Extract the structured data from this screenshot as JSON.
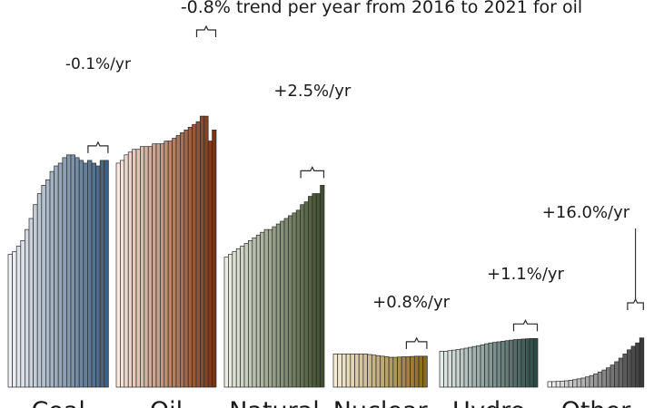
{
  "chart_data": {
    "type": "bar",
    "title": "",
    "xlabel": "",
    "ylabel": "",
    "grid": false,
    "legend": "none",
    "ylim": [
      0,
      100
    ],
    "headline": "-0.8% trend per year from 2016 to 2021 for oil",
    "groups": [
      {
        "name": "Coal",
        "trend": "-0.1%/yr",
        "color_start": "#f1f3f6",
        "color_end": "#3f5f80",
        "values": [
          48,
          49,
          51,
          53,
          57,
          61,
          66,
          70,
          73,
          75,
          78,
          80,
          81,
          83,
          84,
          84,
          83,
          82,
          81,
          82,
          81,
          80,
          82,
          82
        ]
      },
      {
        "name": "Oil",
        "trend": null,
        "color_start": "#fbe9e0",
        "color_end": "#7a3410",
        "values": [
          81,
          82,
          84,
          85,
          86,
          86,
          87,
          87,
          87,
          88,
          88,
          88,
          89,
          89,
          90,
          91,
          92,
          93,
          94,
          95,
          96,
          98,
          98,
          89,
          93
        ]
      },
      {
        "name": "Natural",
        "trend": "+2.5%/yr",
        "color_start": "#ecefe3",
        "color_end": "#3f4e2c",
        "values": [
          47,
          48,
          49,
          50,
          51,
          52,
          53,
          54,
          55,
          56,
          57,
          57,
          58,
          59,
          60,
          61,
          62,
          63,
          64,
          66,
          67,
          69,
          70,
          70,
          73
        ]
      },
      {
        "name": "Nuclear",
        "trend": "+0.8%/yr",
        "color_start": "#f6ecd6",
        "color_end": "#8a6a1e",
        "values": [
          12,
          12,
          12,
          12,
          12,
          12,
          12,
          12,
          11.8,
          11.6,
          11.4,
          11.2,
          11,
          10.8,
          10.8,
          10.9,
          11,
          11,
          11.1,
          11.2,
          11.2,
          11.2
        ]
      },
      {
        "name": "Hydro",
        "trend": "+1.1%/yr",
        "color_start": "#e3ece9",
        "color_end": "#2c4a44",
        "values": [
          13,
          13,
          13.2,
          13.4,
          13.6,
          13.8,
          14.1,
          14.4,
          14.7,
          15,
          15.3,
          15.7,
          16,
          16.2,
          16.4,
          16.6,
          16.8,
          17,
          17.2,
          17.3,
          17.4,
          17.5,
          17.6,
          17.6
        ]
      },
      {
        "name": "Other",
        "trend": "+16.0%/yr",
        "color_start": "#f3f3f3",
        "color_end": "#3a3a3a",
        "values": [
          2,
          2,
          2.1,
          2.2,
          2.3,
          2.5,
          2.7,
          3,
          3.3,
          3.7,
          4.2,
          4.8,
          5.5,
          6.2,
          7,
          8,
          9.2,
          10.5,
          12,
          13.5,
          14.8,
          16,
          17.8
        ]
      }
    ]
  }
}
